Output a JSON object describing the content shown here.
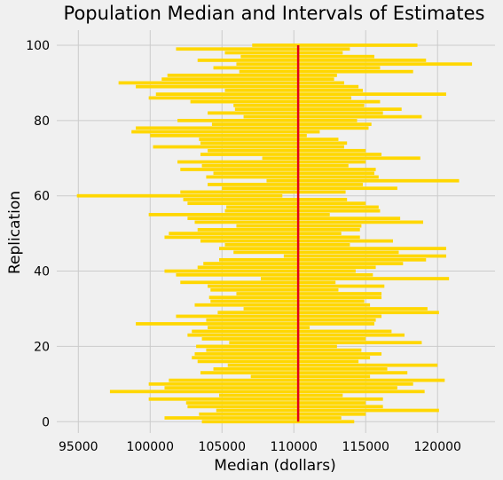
{
  "chart_data": {
    "type": "bar",
    "orientation": "horizontal-intervals",
    "title": "Population Median and Intervals of Estimates",
    "xlabel": "Median (dollars)",
    "ylabel": "Replication",
    "xlim": [
      93500,
      124000
    ],
    "ylim": [
      -3,
      104
    ],
    "xticks": [
      95000,
      100000,
      105000,
      110000,
      115000,
      120000
    ],
    "yticks": [
      0,
      20,
      40,
      60,
      80,
      100
    ],
    "grid": true,
    "bar_color": "#ffd700",
    "population_median": 110300,
    "median_line_color": "#e0001a",
    "intervals": [
      [
        103600,
        114200
      ],
      [
        101000,
        113300
      ],
      [
        103400,
        115000
      ],
      [
        104600,
        120100
      ],
      [
        102600,
        116200
      ],
      [
        102500,
        115000
      ],
      [
        99900,
        116200
      ],
      [
        104800,
        113400
      ],
      [
        97200,
        119100
      ],
      [
        101000,
        117200
      ],
      [
        99900,
        118300
      ],
      [
        101300,
        120500
      ],
      [
        107000,
        115300
      ],
      [
        103500,
        117900
      ],
      [
        104400,
        116500
      ],
      [
        105400,
        120000
      ],
      [
        103300,
        114500
      ],
      [
        102900,
        115300
      ],
      [
        103100,
        116100
      ],
      [
        103900,
        114700
      ],
      [
        103200,
        113000
      ],
      [
        105500,
        118900
      ],
      [
        103600,
        115000
      ],
      [
        102600,
        117700
      ],
      [
        102900,
        116800
      ],
      [
        104000,
        111100
      ],
      [
        99000,
        115600
      ],
      [
        103900,
        115700
      ],
      [
        101800,
        116100
      ],
      [
        104700,
        120100
      ],
      [
        106500,
        119300
      ],
      [
        103100,
        115300
      ],
      [
        104200,
        114900
      ],
      [
        104100,
        116100
      ],
      [
        106000,
        116100
      ],
      [
        104200,
        113100
      ],
      [
        104000,
        116300
      ],
      [
        102100,
        112900
      ],
      [
        107700,
        120800
      ],
      [
        101800,
        115500
      ],
      [
        101000,
        114300
      ],
      [
        103300,
        115700
      ],
      [
        103700,
        117600
      ],
      [
        104800,
        119200
      ],
      [
        109300,
        120600
      ],
      [
        105800,
        117300
      ],
      [
        104800,
        120600
      ],
      [
        105200,
        113900
      ],
      [
        103500,
        116900
      ],
      [
        101000,
        114600
      ],
      [
        101300,
        113300
      ],
      [
        103300,
        114600
      ],
      [
        106000,
        114700
      ],
      [
        103100,
        119000
      ],
      [
        102600,
        117400
      ],
      [
        99900,
        112500
      ],
      [
        105200,
        116000
      ],
      [
        105300,
        115900
      ],
      [
        102600,
        115000
      ],
      [
        102300,
        113700
      ],
      [
        94900,
        109200
      ],
      [
        102100,
        113600
      ],
      [
        105000,
        117200
      ],
      [
        104000,
        114800
      ],
      [
        108100,
        121500
      ],
      [
        103900,
        115900
      ],
      [
        104400,
        115600
      ],
      [
        102100,
        115700
      ],
      [
        103600,
        113800
      ],
      [
        101900,
        115000
      ],
      [
        107800,
        118800
      ],
      [
        103500,
        116100
      ],
      [
        104000,
        115000
      ],
      [
        100200,
        113500
      ],
      [
        103500,
        113700
      ],
      [
        103400,
        113100
      ],
      [
        100000,
        110900
      ],
      [
        98700,
        111800
      ],
      [
        99000,
        115200
      ],
      [
        104300,
        115400
      ],
      [
        101900,
        114400
      ],
      [
        106500,
        118900
      ],
      [
        104000,
        116200
      ],
      [
        105900,
        117500
      ],
      [
        105800,
        114900
      ],
      [
        102800,
        116000
      ],
      [
        99900,
        114000
      ],
      [
        100400,
        120600
      ],
      [
        105200,
        114800
      ],
      [
        99000,
        114500
      ],
      [
        97800,
        113500
      ],
      [
        100800,
        112800
      ],
      [
        101200,
        113000
      ],
      [
        106200,
        118300
      ],
      [
        104400,
        116000
      ],
      [
        106000,
        122400
      ],
      [
        103300,
        119200
      ],
      [
        106300,
        115600
      ],
      [
        105200,
        113400
      ],
      [
        101800,
        113900
      ],
      [
        107100,
        118600
      ]
    ]
  }
}
